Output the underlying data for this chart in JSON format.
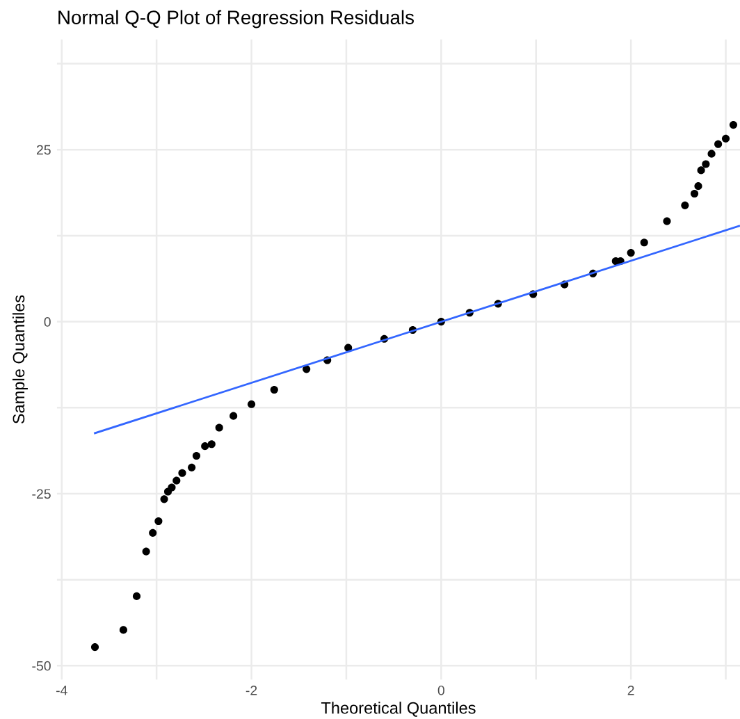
{
  "chart_data": {
    "type": "scatter",
    "title": "Normal Q-Q Plot of Regression Residuals",
    "xlabel": "Theoretical Quantiles",
    "ylabel": "Sample Quantiles",
    "xlim": [
      -4.05,
      3.15
    ],
    "ylim": [
      -52,
      41
    ],
    "xticks": [
      -4,
      {
        "value": -3,
        "label": null
      },
      -2,
      {
        "value": -1,
        "label": null
      },
      0,
      {
        "value": 1,
        "label": null
      },
      2,
      {
        "value": 3,
        "label": null
      }
    ],
    "yticks": [
      -50,
      {
        "value": -37.5,
        "label": null
      },
      -25,
      {
        "value": -12.5,
        "label": null
      },
      0,
      {
        "value": 12.5,
        "label": null
      },
      25,
      {
        "value": 37.5,
        "label": null
      }
    ],
    "grid": true,
    "series": [
      {
        "marker": "circle",
        "color": "#000000",
        "x": [
          -3.65,
          -3.35,
          -3.21,
          -3.11,
          -3.04,
          -2.98,
          -2.92,
          -2.88,
          -2.84,
          -2.79,
          -2.73,
          -2.63,
          -2.58,
          -2.49,
          -2.42,
          -2.34,
          -2.19,
          -2.0,
          -1.76,
          -1.42,
          -1.2,
          -0.98,
          -0.6,
          -0.3,
          0,
          0.3,
          0.6,
          0.97,
          1.3,
          1.6,
          1.84,
          1.89,
          2.0,
          2.14,
          2.38,
          2.57,
          2.67,
          2.71,
          2.74,
          2.79,
          2.85,
          2.92,
          3.0,
          3.08
        ],
        "values": [
          -47.3,
          -44.8,
          -39.9,
          -33.4,
          -30.7,
          -29.0,
          -25.8,
          -24.7,
          -24.1,
          -23.1,
          -22.0,
          -21.2,
          -19.5,
          -18.1,
          -17.8,
          -15.4,
          -13.7,
          -12.0,
          -9.9,
          -6.9,
          -5.6,
          -3.8,
          -2.5,
          -1.2,
          0,
          1.3,
          2.6,
          4.0,
          5.4,
          7.0,
          8.8,
          8.8,
          10.0,
          11.5,
          14.6,
          16.9,
          18.6,
          19.7,
          22.0,
          22.9,
          24.4,
          25.8,
          26.6,
          28.6
        ]
      },
      {
        "type": "line",
        "marker": "none",
        "color": "#3366ff",
        "x": [
          -3.65,
          3.14
        ],
        "values": [
          -16.2,
          13.9
        ]
      }
    ]
  }
}
